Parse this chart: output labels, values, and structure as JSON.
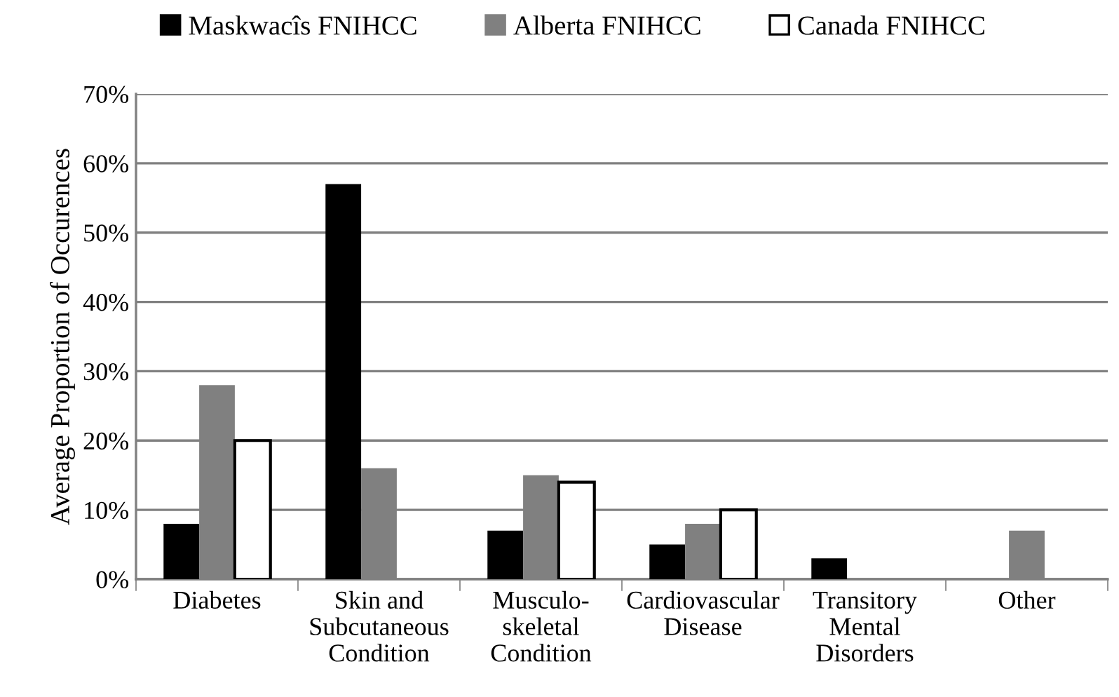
{
  "chart_data": {
    "type": "bar",
    "ylabel": "Average Proportion of Occurences",
    "categories": [
      "Diabetes",
      "Skin and\nSubcutaneous\nCondition",
      "Musculo-\nskeletal\nCondition",
      "Cardiovascular\nDisease",
      "Transitory\nMental\nDisorders",
      "Other"
    ],
    "series": [
      {
        "name": "Maskwacîs FNIHCC",
        "color": "#000000",
        "values": [
          8,
          57,
          7,
          5,
          3,
          null
        ]
      },
      {
        "name": "Alberta FNIHCC",
        "color": "#808080",
        "values": [
          28,
          16,
          15,
          8,
          null,
          7
        ]
      },
      {
        "name": "Canada FNIHCC",
        "color": "#ffffff",
        "values": [
          20,
          null,
          14,
          10,
          null,
          null
        ]
      }
    ],
    "ylim": [
      0,
      70
    ],
    "yticks": [
      {
        "value": 0,
        "label": "0%"
      },
      {
        "value": 10,
        "label": "10%"
      },
      {
        "value": 20,
        "label": "20%"
      },
      {
        "value": 30,
        "label": "30%"
      },
      {
        "value": 40,
        "label": "40%"
      },
      {
        "value": 50,
        "label": "50%"
      },
      {
        "value": 60,
        "label": "60%"
      },
      {
        "value": 70,
        "label": "70%"
      }
    ],
    "grid": "y",
    "legend": "top"
  }
}
